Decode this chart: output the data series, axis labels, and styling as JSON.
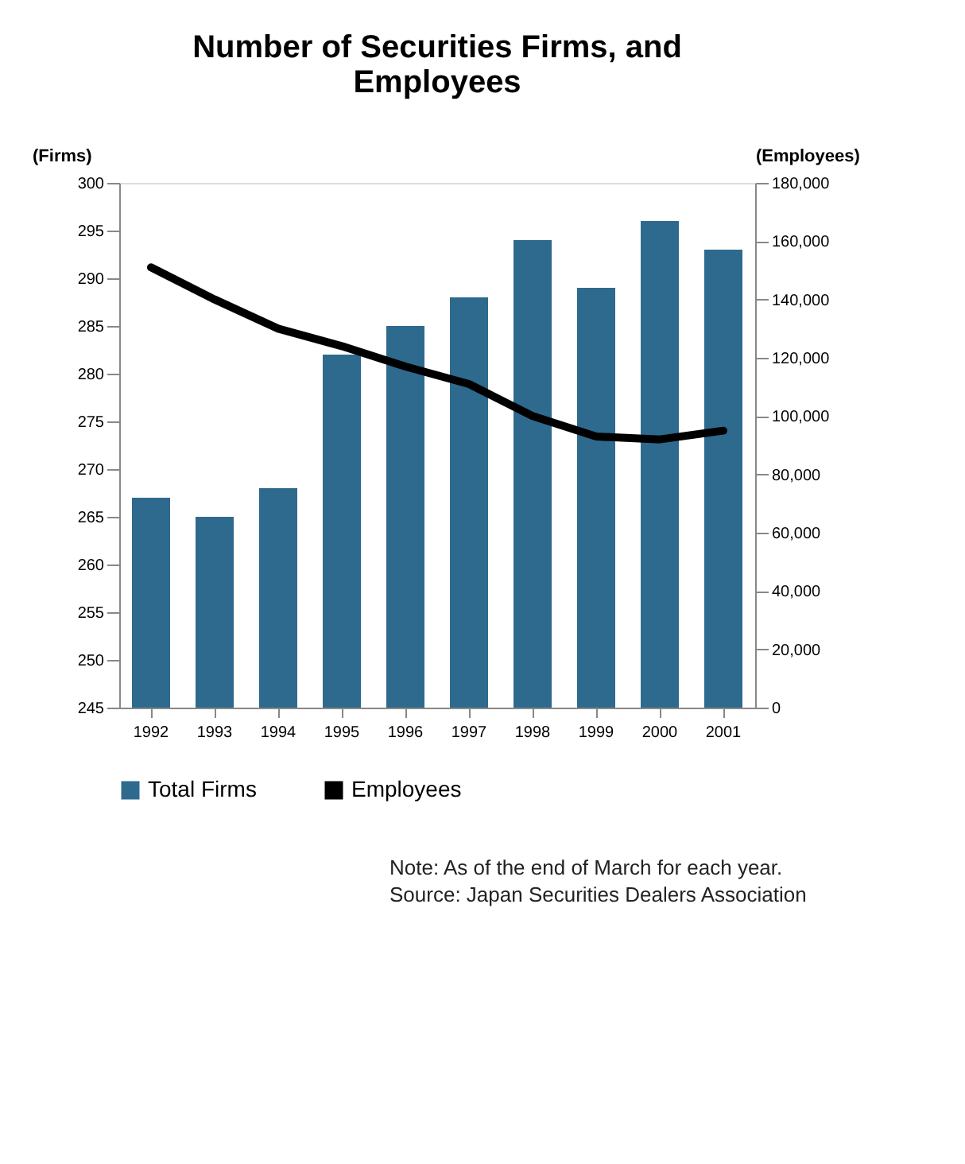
{
  "chart_data": {
    "type": "bar",
    "title": "Number of Securities Firms, and Employees",
    "categories": [
      "1992",
      "1993",
      "1994",
      "1995",
      "1996",
      "1997",
      "1998",
      "1999",
      "2000",
      "2001"
    ],
    "series": [
      {
        "name": "Total Firms",
        "color": "#2e6a8e",
        "values": [
          267,
          265,
          268,
          282,
          285,
          288,
          294,
          289,
          296,
          293
        ]
      },
      {
        "name": "Employees",
        "type": "line",
        "axis": "y2",
        "color": "#000000",
        "values": [
          151000,
          140000,
          130000,
          124000,
          117000,
          111000,
          100000,
          93000,
          92000,
          95000
        ]
      }
    ],
    "ylabel": "(Firms)",
    "y2label": "(Employees)",
    "ylim": [
      245,
      300
    ],
    "yticks": [
      245,
      250,
      255,
      260,
      265,
      270,
      275,
      280,
      285,
      290,
      295,
      300
    ],
    "y2lim": [
      0,
      180000
    ],
    "y2ticks": [
      0,
      {
        "value": 20000,
        "label": "20,000"
      },
      {
        "value": 40000,
        "label": "40,000"
      },
      {
        "value": 60000,
        "label": "60,000"
      },
      {
        "value": 80000,
        "label": "80,000"
      },
      {
        "value": 100000,
        "label": "100,000"
      },
      {
        "value": 120000,
        "label": "120,000"
      },
      {
        "value": 140000,
        "label": "140,000"
      },
      {
        "value": 160000,
        "label": "160,000"
      },
      {
        "value": 180000,
        "label": "180,000"
      }
    ],
    "legend": "bottom",
    "grid": false,
    "marker": "none",
    "line_style": "solid",
    "annotations": [
      "Note:      As of the end of March for each year.",
      "Source:   Japan Securities Dealers Association"
    ]
  }
}
